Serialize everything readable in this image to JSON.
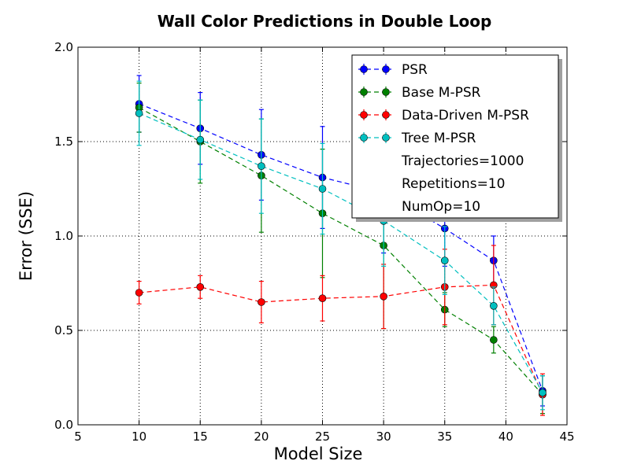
{
  "chart_data": {
    "type": "line",
    "title": "Wall Color Predictions in Double Loop",
    "xlabel": "Model Size",
    "ylabel": "Error (SSE)",
    "xlim": [
      5,
      45
    ],
    "ylim": [
      0.0,
      2.0
    ],
    "xticks": [
      "5",
      "10",
      "15",
      "20",
      "25",
      "30",
      "35",
      "40",
      "45"
    ],
    "yticks": [
      "0.0",
      "0.5",
      "1.0",
      "1.5",
      "2.0"
    ],
    "grid": true,
    "legend_position": "top-right",
    "series": [
      {
        "name": "PSR",
        "color": "#0000ff",
        "x": [
          10,
          15,
          20,
          25,
          30,
          35,
          39,
          43
        ],
        "y": [
          1.7,
          1.57,
          1.43,
          1.31,
          1.23,
          1.04,
          0.87,
          0.18
        ],
        "err": [
          0.15,
          0.19,
          0.24,
          0.27,
          0.32,
          0.2,
          0.13,
          0.08
        ]
      },
      {
        "name": "Base M-PSR",
        "color": "#008000",
        "x": [
          10,
          15,
          20,
          25,
          30,
          35,
          39,
          43
        ],
        "y": [
          1.68,
          1.5,
          1.32,
          1.12,
          0.95,
          0.61,
          0.45,
          0.16
        ],
        "err": [
          0.13,
          0.22,
          0.3,
          0.34,
          0.44,
          0.09,
          0.07,
          0.1
        ]
      },
      {
        "name": "Data-Driven M-PSR",
        "color": "#ff0000",
        "x": [
          10,
          15,
          20,
          25,
          30,
          35,
          39,
          43
        ],
        "y": [
          0.7,
          0.73,
          0.65,
          0.67,
          0.68,
          0.73,
          0.74,
          0.16
        ],
        "err": [
          0.06,
          0.06,
          0.11,
          0.12,
          0.17,
          0.2,
          0.21,
          0.11
        ]
      },
      {
        "name": "Tree M-PSR",
        "color": "#00bfbf",
        "x": [
          10,
          15,
          20,
          25,
          30,
          35,
          39,
          43
        ],
        "y": [
          1.65,
          1.51,
          1.37,
          1.25,
          1.08,
          0.87,
          0.63,
          0.17
        ],
        "err": [
          0.17,
          0.21,
          0.25,
          0.24,
          0.24,
          0.18,
          0.1,
          0.09
        ]
      }
    ],
    "annotations": [
      "Trajectories=1000",
      "Repetitions=10",
      "NumOp=10"
    ]
  }
}
